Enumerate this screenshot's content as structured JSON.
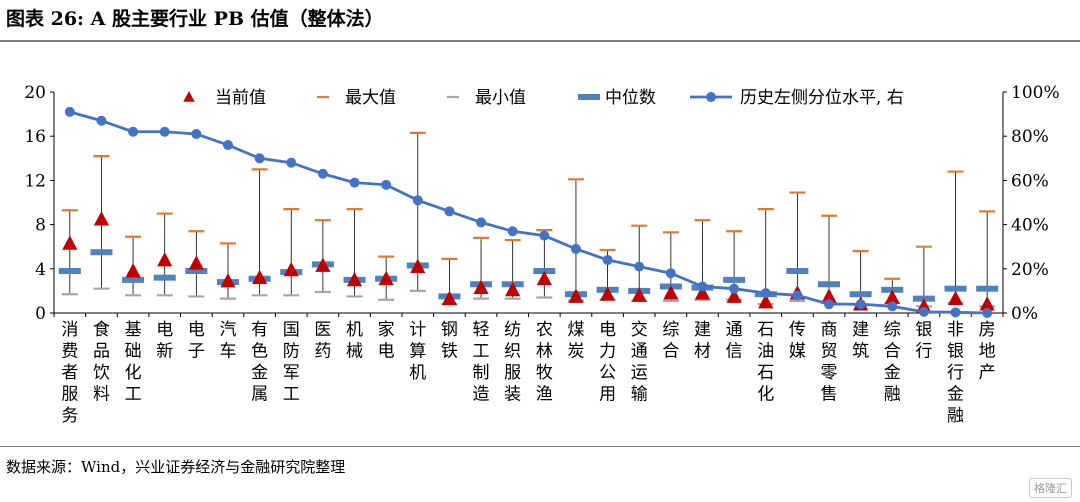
{
  "page": {
    "title": "图表 26:  A 股主要行业 PB 估值（整体法）",
    "source": "数据来源：Wind，兴业证券经济与金融研究院整理",
    "watermark": "格隆汇"
  },
  "colors": {
    "current": "#c00000",
    "max": "#e07a2e",
    "min": "#a6a6a6",
    "median": "#4f81bd",
    "percentile": "#4472c4",
    "range": "#000000"
  },
  "chart_data": {
    "type": "line",
    "title": "A 股主要行业 PB 估值（整体法）",
    "legend_position": "top",
    "legend": [
      "当前值",
      "最大值",
      "最小值",
      "中位数",
      "历史左侧分位水平, 右"
    ],
    "categories": [
      "消费者服务",
      "食品饮料",
      "基础化工",
      "电新",
      "电子",
      "汽车",
      "有色金属",
      "国防军工",
      "医药",
      "机械",
      "家电",
      "计算机",
      "钢铁",
      "轻工制造",
      "纺织服装",
      "农林牧渔",
      "煤炭",
      "电力公用",
      "交通运输",
      "综合",
      "建材",
      "通信",
      "石油石化",
      "传媒",
      "商贸零售",
      "建筑",
      "综合金融",
      "银行",
      "非银行金融",
      "房地产"
    ],
    "y_left": {
      "min": 0,
      "max": 20,
      "ticks": [
        "0",
        "4",
        "8",
        "12",
        "16",
        "20"
      ]
    },
    "y_right": {
      "min": 0,
      "max": 100,
      "ticks": [
        "0%",
        "20%",
        "40%",
        "60%",
        "80%",
        "100%"
      ]
    },
    "series": [
      {
        "name": "当前值",
        "axis": "left",
        "marker": "triangle",
        "values": [
          6.3,
          8.5,
          3.8,
          4.8,
          4.5,
          2.9,
          3.2,
          3.9,
          4.3,
          3.0,
          3.1,
          4.2,
          1.3,
          2.3,
          2.1,
          3.1,
          1.5,
          1.7,
          1.6,
          1.8,
          1.8,
          1.5,
          1.0,
          1.8,
          1.5,
          0.8,
          1.4,
          0.6,
          1.3,
          0.8
        ]
      },
      {
        "name": "最大值",
        "axis": "left",
        "marker": "dash",
        "values": [
          9.3,
          14.2,
          6.9,
          9.0,
          7.4,
          6.3,
          13.0,
          9.4,
          8.4,
          9.4,
          5.1,
          16.3,
          4.9,
          6.8,
          6.6,
          7.5,
          12.1,
          5.7,
          7.9,
          7.3,
          8.4,
          7.4,
          9.4,
          10.9,
          8.8,
          5.6,
          3.1,
          6.0,
          12.8,
          9.2
        ]
      },
      {
        "name": "最小值",
        "axis": "left",
        "marker": "dash",
        "values": [
          1.7,
          2.2,
          1.6,
          1.6,
          1.5,
          1.3,
          1.6,
          1.6,
          1.9,
          1.5,
          1.2,
          2.0,
          0.8,
          1.3,
          1.3,
          1.4,
          1.1,
          1.2,
          1.1,
          1.1,
          1.2,
          1.2,
          0.8,
          1.1,
          0.9,
          0.7,
          0.9,
          0.6,
          0.9,
          0.6
        ]
      },
      {
        "name": "中位数",
        "axis": "left",
        "marker": "bar",
        "values": [
          3.8,
          5.5,
          3.0,
          3.2,
          3.8,
          2.8,
          3.1,
          3.7,
          4.4,
          3.0,
          3.1,
          4.3,
          1.5,
          2.6,
          2.6,
          3.8,
          1.7,
          2.1,
          2.0,
          2.4,
          2.3,
          3.0,
          1.7,
          3.8,
          2.6,
          1.7,
          2.1,
          1.3,
          2.2,
          2.2
        ]
      },
      {
        "name": "历史左侧分位水平, 右",
        "axis": "right",
        "marker": "circle-line",
        "values": [
          91,
          87,
          82,
          82,
          81,
          76,
          70,
          68,
          63,
          59,
          58,
          51,
          46,
          41,
          37,
          35,
          29,
          24,
          21,
          18,
          12,
          11,
          9,
          8,
          4,
          4,
          3,
          0.5,
          0.3,
          0
        ]
      }
    ]
  }
}
